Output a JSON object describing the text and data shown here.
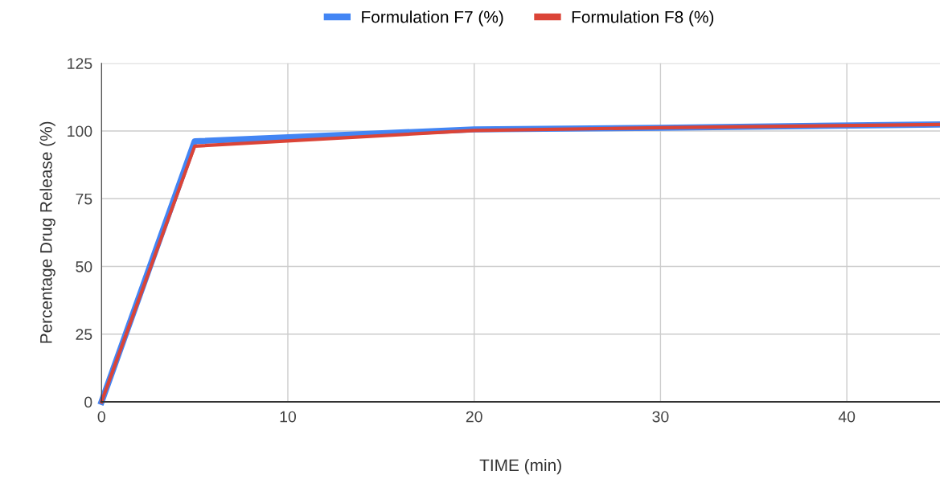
{
  "chart_data": {
    "type": "line",
    "xlabel": "TIME (min)",
    "ylabel": "Percentage Drug Release (%)",
    "x": [
      0,
      5,
      20,
      30,
      45
    ],
    "series": [
      {
        "name": "Formulation F7 (%)",
        "color": "#4285f4",
        "values": [
          0,
          96.2,
          100.6,
          101.2,
          102.4
        ]
      },
      {
        "name": "Formulation F8 (%)",
        "color": "#db4437",
        "values": [
          0,
          94.4,
          100.2,
          101.2,
          102.4
        ]
      }
    ],
    "xlim": [
      0,
      45
    ],
    "xticks": [
      0,
      10,
      20,
      30,
      40
    ],
    "ylim": [
      0,
      125
    ],
    "yticks": [
      0,
      25,
      50,
      75,
      100,
      125
    ],
    "grid": true,
    "legend": "top",
    "marker": "none",
    "line_style": "solid"
  }
}
